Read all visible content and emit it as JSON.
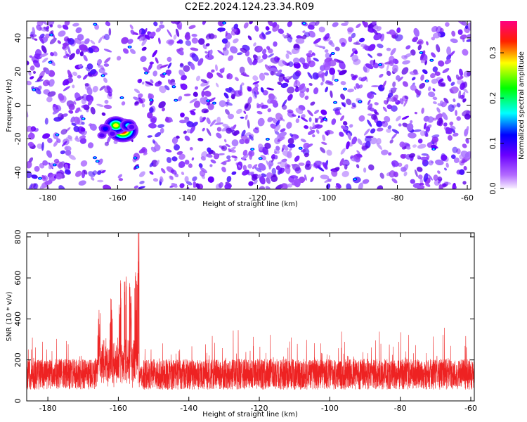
{
  "title": "C2E2.2024.124.23.34.R09",
  "chart_data": [
    {
      "type": "heatmap",
      "xlabel": "Height of straight line (km)",
      "ylabel": "Frequency (Hz)",
      "xlim": [
        -186,
        -59
      ],
      "ylim": [
        -50,
        50
      ],
      "xticks": [
        -180,
        -160,
        -140,
        -120,
        -100,
        -80,
        -60
      ],
      "yticks": [
        -40,
        -20,
        0,
        20,
        40
      ],
      "colorbar": {
        "label": "Normalized spectral amplitude",
        "range": [
          0,
          0.37
        ],
        "ticks": [
          0.0,
          0.1,
          0.2,
          0.3
        ],
        "colormap": [
          "#ffffff",
          "#8a2be2",
          "#0000ff",
          "#00ffff",
          "#00ff00",
          "#ffff00",
          "#ff0000",
          "#ff0080"
        ]
      },
      "background_level": 0.04,
      "hotspots": [
        {
          "x": -158.5,
          "y": -15,
          "value": 0.37
        },
        {
          "x": -160.5,
          "y": -12,
          "value": 0.3
        },
        {
          "x": -157.0,
          "y": -12,
          "value": 0.18
        },
        {
          "x": -163.5,
          "y": -14,
          "value": 0.12
        },
        {
          "x": -161.5,
          "y": -17,
          "value": 0.1
        },
        {
          "x": -156.0,
          "y": -13,
          "value": 0.1
        },
        {
          "x": -164.5,
          "y": -18,
          "value": 0.09
        }
      ]
    },
    {
      "type": "line",
      "xlabel": "Height of straight line (km)",
      "ylabel": "SNR (10 * v/v)",
      "xlim": [
        -186,
        -59
      ],
      "ylim": [
        0,
        820
      ],
      "xticks": [
        -180,
        -160,
        -140,
        -120,
        -100,
        -80,
        -60
      ],
      "yticks": [
        0,
        200,
        400,
        600,
        800
      ],
      "color": "#ee2222",
      "baseline_mean": 130,
      "baseline_typical_max": 330,
      "peaks": [
        {
          "x": -165.5,
          "y": 350
        },
        {
          "x": -162.0,
          "y": 430
        },
        {
          "x": -159.5,
          "y": 520
        },
        {
          "x": -158.0,
          "y": 650
        },
        {
          "x": -156.5,
          "y": 520
        },
        {
          "x": -155.0,
          "y": 560
        },
        {
          "x": -154.2,
          "y": 800
        },
        {
          "x": -153.6,
          "y": 800
        }
      ],
      "gap": {
        "x": [
          -154.0,
          -153.0
        ],
        "y": [
          70,
          170
        ]
      }
    }
  ]
}
